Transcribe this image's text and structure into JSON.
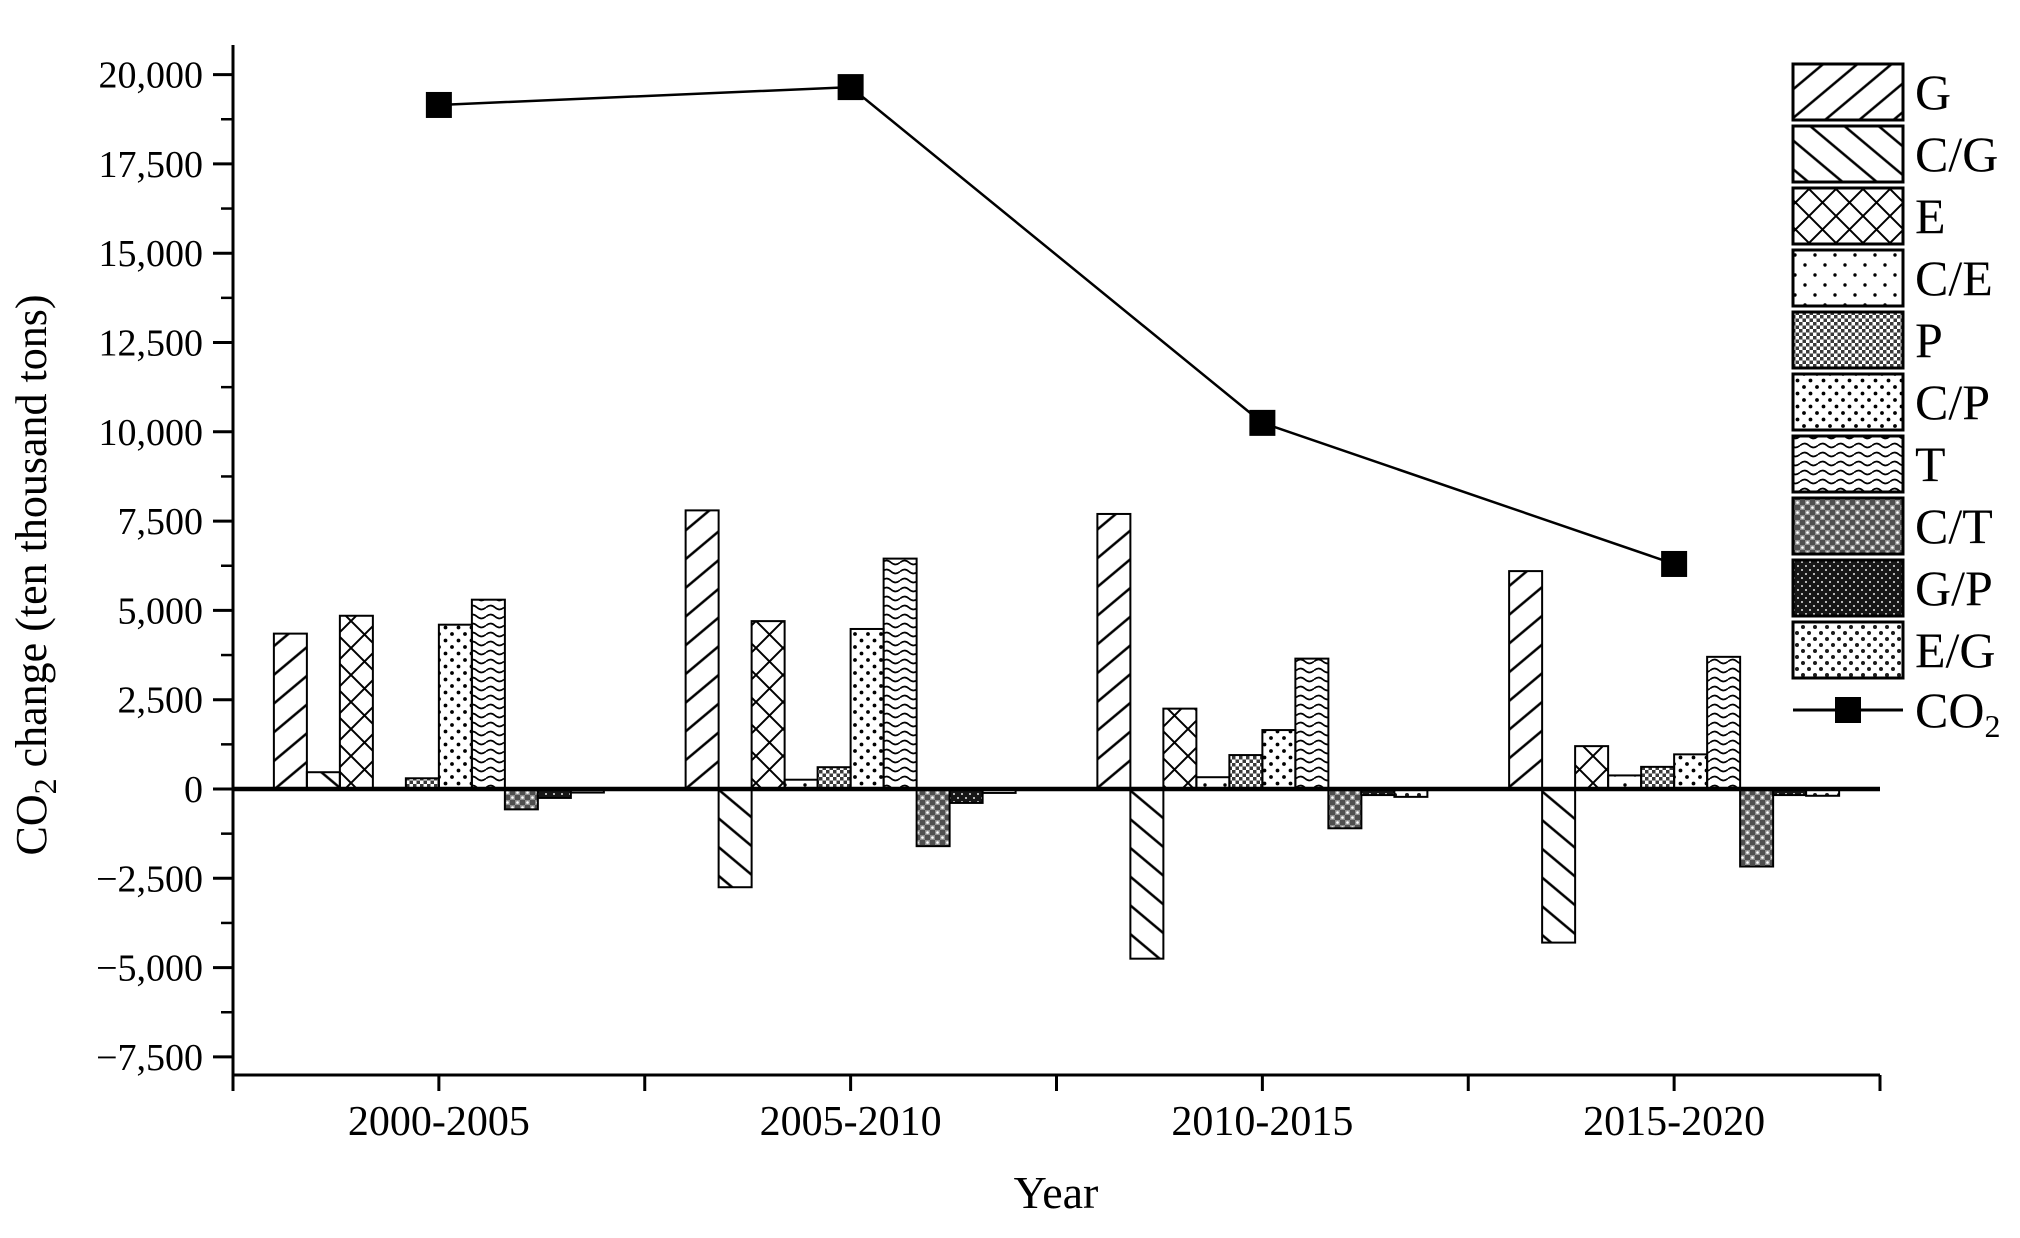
{
  "chart_data": {
    "type": "bar",
    "title": "",
    "xlabel": "Year",
    "ylabel_parts": {
      "prefix": "CO",
      "sub": "2",
      "suffix": " change (ten thousand tons)"
    },
    "categories": [
      "2000-2005",
      "2005-2010",
      "2010-2015",
      "2015-2020"
    ],
    "series": [
      {
        "name": "G",
        "pattern": "diagonal-up",
        "values": [
          4350,
          7800,
          7700,
          6100
        ]
      },
      {
        "name": "C/G",
        "pattern": "diagonal-down",
        "values": [
          470,
          -2750,
          -4750,
          -4300
        ]
      },
      {
        "name": "E",
        "pattern": "crosshatch",
        "values": [
          4850,
          4700,
          2250,
          1200
        ]
      },
      {
        "name": "C/E",
        "pattern": "dots-sparse",
        "values": [
          30,
          260,
          330,
          380
        ]
      },
      {
        "name": "P",
        "pattern": "checker-fine",
        "values": [
          300,
          610,
          950,
          620
        ]
      },
      {
        "name": "C/P",
        "pattern": "dots-medium",
        "values": [
          4600,
          4480,
          1650,
          970
        ]
      },
      {
        "name": "T",
        "pattern": "waves",
        "values": [
          5300,
          6450,
          3650,
          3700
        ]
      },
      {
        "name": "C/T",
        "pattern": "checker-gray",
        "values": [
          -570,
          -1600,
          -1100,
          -2170
        ]
      },
      {
        "name": "G/P",
        "pattern": "checker-dark",
        "values": [
          -250,
          -390,
          -170,
          -170
        ]
      },
      {
        "name": "E/G",
        "pattern": "dots-light",
        "values": [
          -100,
          -110,
          -220,
          -190
        ]
      }
    ],
    "line_series": {
      "label_parts": {
        "prefix": "CO",
        "sub": "2"
      },
      "marker": "filled-square",
      "values": [
        19150,
        19650,
        10250,
        6300
      ]
    },
    "y_ticks": [
      {
        "value": 20000,
        "label": "20,000"
      },
      {
        "value": 17500,
        "label": "17,500"
      },
      {
        "value": 15000,
        "label": "15,000"
      },
      {
        "value": 12500,
        "label": "12,500"
      },
      {
        "value": 10000,
        "label": "10,000"
      },
      {
        "value": 7500,
        "label": "7,500"
      },
      {
        "value": 5000,
        "label": "5,000"
      },
      {
        "value": 2500,
        "label": "2,500"
      },
      {
        "value": 0,
        "label": "0"
      },
      {
        "value": -2500,
        "label": "−2,500"
      },
      {
        "value": -5000,
        "label": "−5,000"
      },
      {
        "value": -7500,
        "label": "−7,500"
      }
    ],
    "ylim": [
      -8000,
      20800
    ],
    "grid": false,
    "legend_position": "top-right"
  },
  "colors": {
    "ink": "#000000",
    "background": "#ffffff"
  }
}
